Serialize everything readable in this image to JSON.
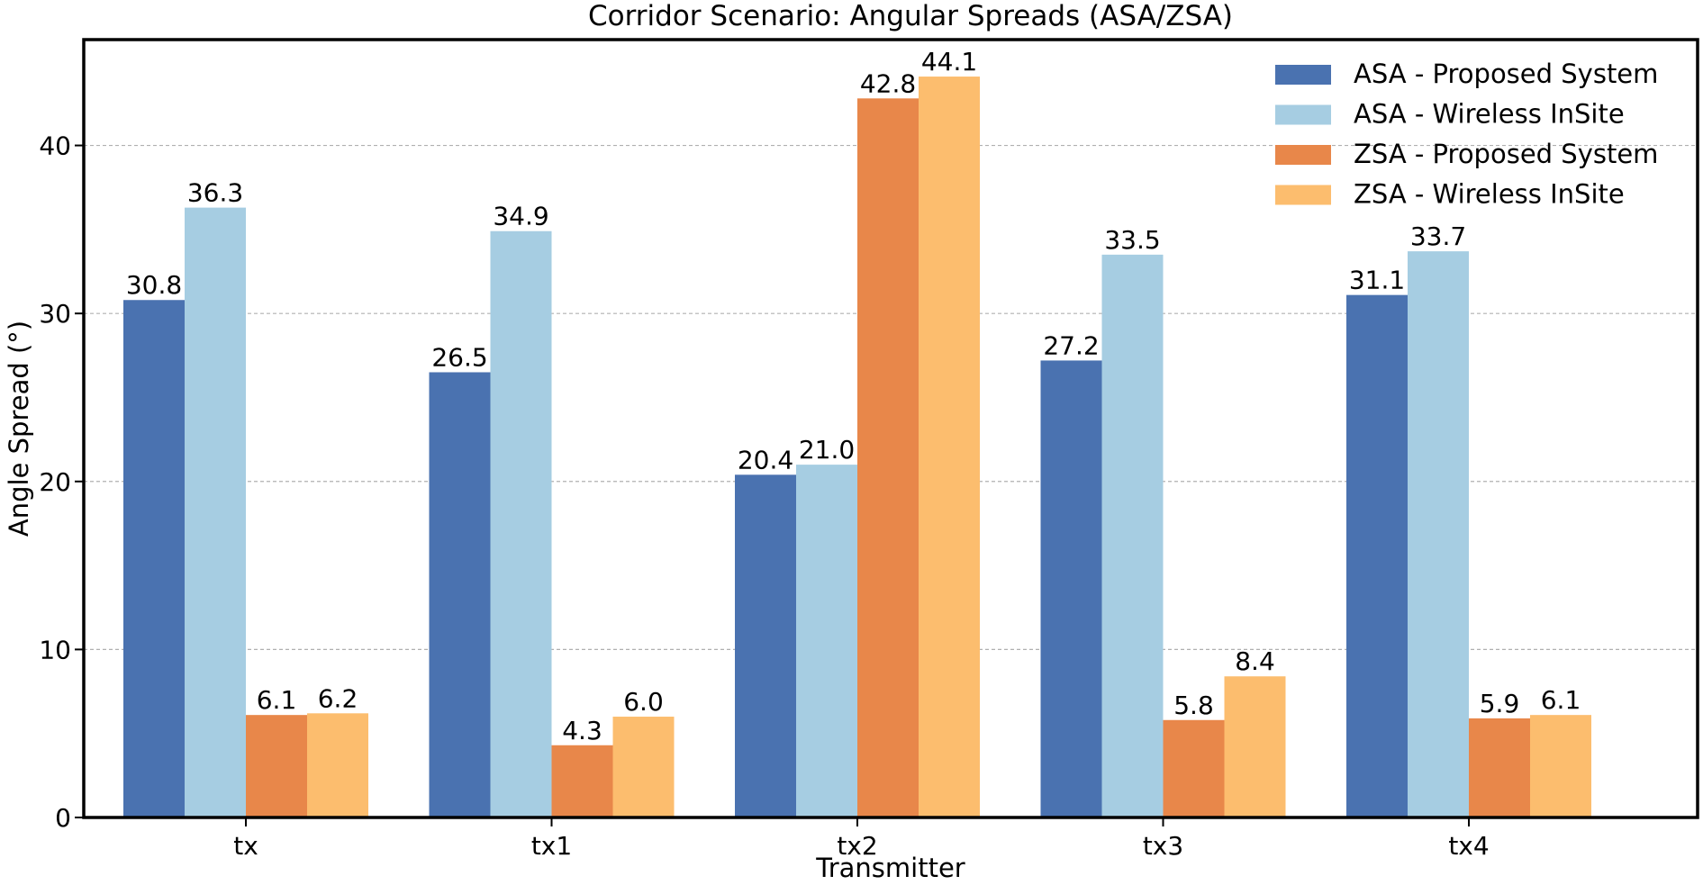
{
  "chart_data": {
    "type": "bar",
    "title": "Corridor Scenario: Angular Spreads (ASA/ZSA)",
    "xlabel": "Transmitter",
    "ylabel": "Angle Spread (°)",
    "categories": [
      "tx",
      "tx1",
      "tx2",
      "tx3",
      "tx4"
    ],
    "ylim": [
      0,
      46.3
    ],
    "yticks": [
      0,
      10,
      20,
      30,
      40
    ],
    "grid": true,
    "legend_position": "top-right",
    "series": [
      {
        "name": "ASA - Proposed System",
        "color": "#4a72b0",
        "values": [
          30.8,
          26.5,
          20.4,
          27.2,
          31.1
        ],
        "labels": [
          "30.8",
          "26.5",
          "20.4",
          "27.2",
          "31.1"
        ]
      },
      {
        "name": "ASA - Wireless InSite",
        "color": "#a6cde2",
        "values": [
          36.3,
          34.9,
          21.0,
          33.5,
          33.7
        ],
        "labels": [
          "36.3",
          "34.9",
          "21.0",
          "33.5",
          "33.7"
        ]
      },
      {
        "name": "ZSA - Proposed System",
        "color": "#e8874a",
        "values": [
          6.1,
          4.3,
          42.8,
          5.8,
          5.9
        ],
        "labels": [
          "6.1",
          "4.3",
          "42.8",
          "5.8",
          "5.9"
        ]
      },
      {
        "name": "ZSA - Wireless InSite",
        "color": "#fcbd6e",
        "values": [
          6.2,
          6.0,
          44.1,
          8.4,
          6.1
        ],
        "labels": [
          "6.2",
          "6.0",
          "44.1",
          "8.4",
          "6.1"
        ]
      }
    ]
  }
}
